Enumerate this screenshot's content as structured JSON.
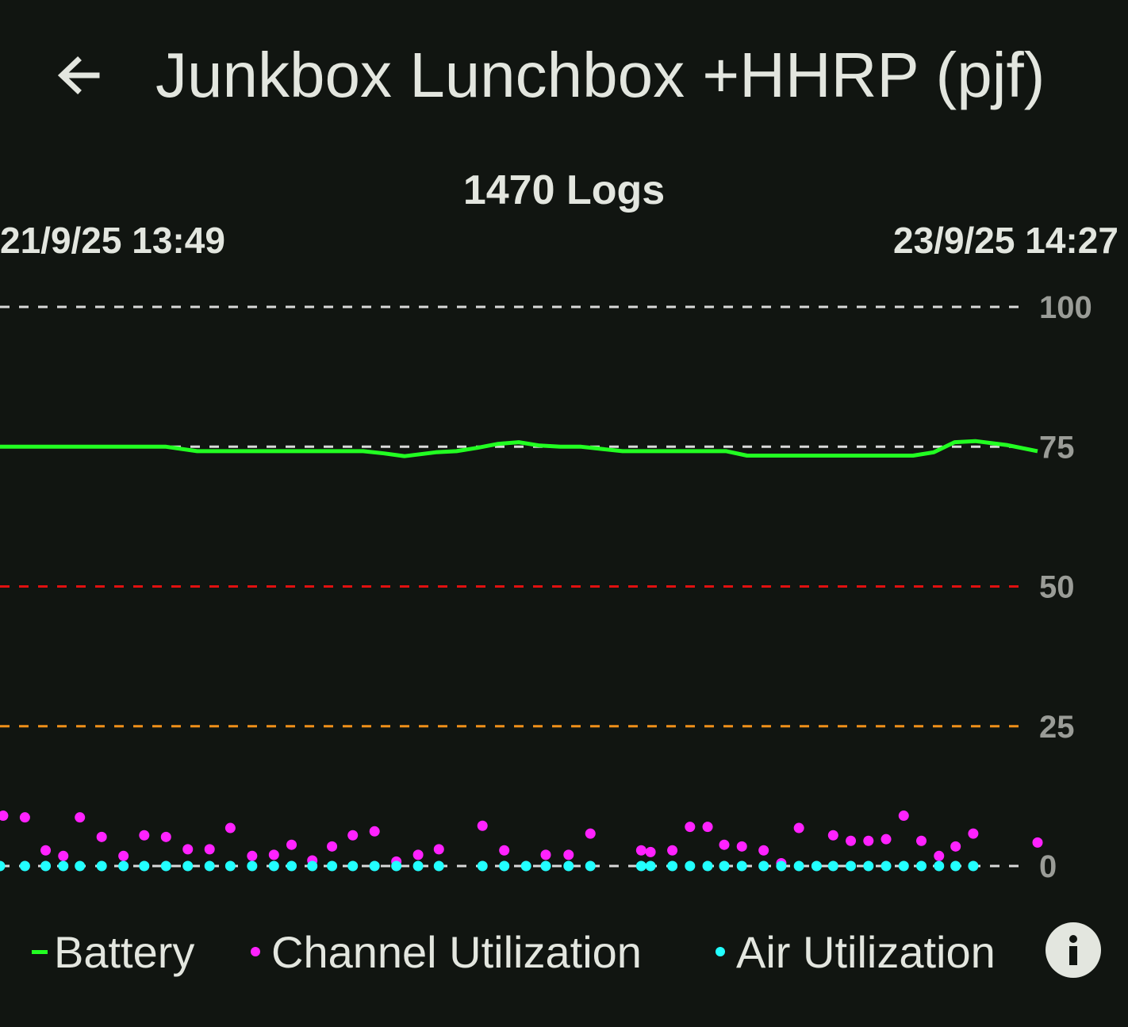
{
  "header": {
    "title": "Junkbox Lunchbox +HHRP (pjf)",
    "back_icon": "arrow-left-icon"
  },
  "summary": {
    "logs_label": "1470 Logs",
    "start_date": "21/9/25 13:49",
    "end_date": "23/9/25 14:27"
  },
  "chart_data": {
    "type": "line",
    "ylim": [
      0,
      100
    ],
    "y_ticks": [
      "100",
      "75",
      "50",
      "25",
      "0"
    ],
    "reference_lines": [
      {
        "value": 100,
        "color": "#d9d9d9"
      },
      {
        "value": 75,
        "color": "#d9d9d9"
      },
      {
        "value": 50,
        "color": "#e01010"
      },
      {
        "value": 25,
        "color": "#f0901a"
      },
      {
        "value": 0,
        "color": "#d9d9d9"
      }
    ],
    "x": [
      0,
      0.03,
      0.06,
      0.1,
      0.14,
      0.16,
      0.19,
      0.25,
      0.3,
      0.35,
      0.37,
      0.39,
      0.42,
      0.44,
      0.46,
      0.48,
      0.5,
      0.52,
      0.54,
      0.56,
      0.6,
      0.62,
      0.64,
      0.67,
      0.7,
      0.72,
      0.75,
      0.8,
      0.85,
      0.88,
      0.9,
      0.92,
      0.94,
      0.97,
      1.0
    ],
    "series": [
      {
        "name": "Battery",
        "color": "#22ff22",
        "style": "line",
        "values": [
          75,
          75,
          75,
          75,
          75,
          75,
          74.2,
          74.2,
          74.2,
          74.2,
          73.8,
          73.3,
          74,
          74.2,
          74.8,
          75.5,
          75.8,
          75.2,
          75,
          75,
          74.2,
          74.2,
          74.2,
          74.2,
          74.2,
          73.4,
          73.4,
          73.4,
          73.4,
          73.4,
          74,
          75.8,
          76,
          75.3,
          74.2
        ]
      },
      {
        "name": "Channel Utilization",
        "color": "#ff22ff",
        "style": "points",
        "values": [
          [
            0.003,
            9
          ],
          [
            0.024,
            8.7
          ],
          [
            0.044,
            2.8
          ],
          [
            0.061,
            1.8
          ],
          [
            0.077,
            8.7
          ],
          [
            0.098,
            5.2
          ],
          [
            0.119,
            1.8
          ],
          [
            0.139,
            5.5
          ],
          [
            0.16,
            5.2
          ],
          [
            0.181,
            3
          ],
          [
            0.202,
            3
          ],
          [
            0.222,
            6.8
          ],
          [
            0.243,
            1.8
          ],
          [
            0.264,
            2
          ],
          [
            0.281,
            3.8
          ],
          [
            0.301,
            1
          ],
          [
            0.32,
            3.5
          ],
          [
            0.34,
            5.5
          ],
          [
            0.361,
            6.2
          ],
          [
            0.382,
            0.8
          ],
          [
            0.403,
            2
          ],
          [
            0.423,
            3
          ],
          [
            0.465,
            7.2
          ],
          [
            0.486,
            2.8
          ],
          [
            0.526,
            2
          ],
          [
            0.548,
            2
          ],
          [
            0.569,
            5.8
          ],
          [
            0.618,
            2.8
          ],
          [
            0.627,
            2.5
          ],
          [
            0.648,
            2.8
          ],
          [
            0.665,
            7
          ],
          [
            0.682,
            7
          ],
          [
            0.698,
            3.8
          ],
          [
            0.715,
            3.5
          ],
          [
            0.736,
            2.8
          ],
          [
            0.753,
            0.5
          ],
          [
            0.77,
            6.8
          ],
          [
            0.803,
            5.5
          ],
          [
            0.82,
            4.5
          ],
          [
            0.837,
            4.5
          ],
          [
            0.854,
            4.8
          ],
          [
            0.871,
            9
          ],
          [
            0.888,
            4.5
          ],
          [
            0.905,
            1.8
          ],
          [
            0.921,
            3.5
          ],
          [
            0.938,
            5.8
          ],
          [
            1.0,
            4.2
          ]
        ]
      },
      {
        "name": "Air Utilization",
        "color": "#22ffff",
        "style": "points",
        "values": [
          [
            0.0,
            0
          ],
          [
            0.024,
            0
          ],
          [
            0.044,
            0
          ],
          [
            0.061,
            0
          ],
          [
            0.077,
            0
          ],
          [
            0.098,
            0
          ],
          [
            0.119,
            0
          ],
          [
            0.139,
            0
          ],
          [
            0.16,
            0
          ],
          [
            0.181,
            0
          ],
          [
            0.202,
            0
          ],
          [
            0.222,
            0
          ],
          [
            0.243,
            0
          ],
          [
            0.264,
            0
          ],
          [
            0.281,
            0
          ],
          [
            0.301,
            0
          ],
          [
            0.32,
            0
          ],
          [
            0.34,
            0
          ],
          [
            0.361,
            0
          ],
          [
            0.382,
            0
          ],
          [
            0.403,
            0
          ],
          [
            0.423,
            0
          ],
          [
            0.465,
            0
          ],
          [
            0.486,
            0
          ],
          [
            0.507,
            0
          ],
          [
            0.526,
            0
          ],
          [
            0.548,
            0
          ],
          [
            0.569,
            0
          ],
          [
            0.618,
            0
          ],
          [
            0.627,
            0
          ],
          [
            0.648,
            0
          ],
          [
            0.665,
            0
          ],
          [
            0.682,
            0
          ],
          [
            0.698,
            0
          ],
          [
            0.715,
            0
          ],
          [
            0.736,
            0
          ],
          [
            0.753,
            0
          ],
          [
            0.77,
            0
          ],
          [
            0.787,
            0
          ],
          [
            0.803,
            0
          ],
          [
            0.82,
            0
          ],
          [
            0.837,
            0
          ],
          [
            0.854,
            0
          ],
          [
            0.871,
            0
          ],
          [
            0.888,
            0
          ],
          [
            0.905,
            0
          ],
          [
            0.921,
            0
          ],
          [
            0.938,
            0
          ]
        ]
      }
    ]
  },
  "legend": {
    "battery_label": "Battery",
    "channel_label": "Channel Utilization",
    "air_label": "Air Utilization",
    "info_icon": "info-icon"
  }
}
